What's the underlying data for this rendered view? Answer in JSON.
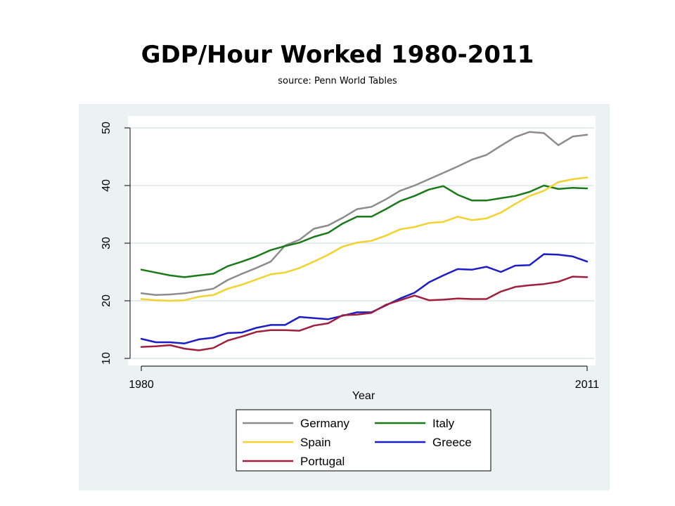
{
  "page": {
    "title": "GDP/Hour Worked 1980-2011",
    "subtitle": "source: Penn World Tables"
  },
  "chart_data": {
    "type": "line",
    "xlabel": "Year",
    "ylabel": "",
    "xlim": [
      1980,
      2011
    ],
    "ylim": [
      10,
      50
    ],
    "x_ticks": [
      1980,
      2011
    ],
    "y_ticks": [
      10,
      20,
      30,
      40,
      50
    ],
    "grid": true,
    "legend_position": "bottom",
    "colors": {
      "background": "#eaf2f3",
      "plot_area": "#ffffff",
      "grid": "#e3ecee"
    },
    "x": [
      1980,
      1981,
      1982,
      1983,
      1984,
      1985,
      1986,
      1987,
      1988,
      1989,
      1990,
      1991,
      1992,
      1993,
      1994,
      1995,
      1996,
      1997,
      1998,
      1999,
      2000,
      2001,
      2002,
      2003,
      2004,
      2005,
      2006,
      2007,
      2008,
      2009,
      2010,
      2011
    ],
    "series": [
      {
        "name": "Germany",
        "color": "#8c8c8c",
        "values": [
          21.3,
          21.0,
          21.1,
          21.3,
          21.7,
          22.1,
          23.6,
          24.7,
          25.7,
          26.8,
          29.6,
          30.6,
          32.5,
          33.1,
          34.4,
          35.9,
          36.3,
          37.6,
          39.1,
          40.0,
          41.1,
          42.2,
          43.3,
          44.5,
          45.3,
          46.9,
          48.4,
          49.3,
          49.1,
          47.0,
          48.5,
          48.8
        ]
      },
      {
        "name": "Italy",
        "color": "#1a7a1a",
        "values": [
          25.4,
          24.9,
          24.4,
          24.1,
          24.4,
          24.7,
          26.0,
          26.8,
          27.7,
          28.8,
          29.5,
          30.1,
          31.1,
          31.8,
          33.4,
          34.6,
          34.6,
          35.9,
          37.3,
          38.2,
          39.3,
          39.9,
          38.4,
          37.4,
          37.4,
          37.8,
          38.2,
          38.9,
          40.0,
          39.4,
          39.6,
          39.5
        ]
      },
      {
        "name": "Spain",
        "color": "#f2d22e",
        "values": [
          20.3,
          20.1,
          20.0,
          20.1,
          20.7,
          21.0,
          22.1,
          22.8,
          23.7,
          24.6,
          24.9,
          25.7,
          26.8,
          28.0,
          29.4,
          30.1,
          30.4,
          31.3,
          32.4,
          32.8,
          33.5,
          33.7,
          34.6,
          34.0,
          34.3,
          35.3,
          36.8,
          38.2,
          39.1,
          40.6,
          41.1,
          41.4
        ]
      },
      {
        "name": "Greece",
        "color": "#1c1cc8",
        "values": [
          13.4,
          12.8,
          12.8,
          12.6,
          13.3,
          13.6,
          14.4,
          14.5,
          15.3,
          15.8,
          15.8,
          17.2,
          17.0,
          16.8,
          17.4,
          18.0,
          18.0,
          19.2,
          20.4,
          21.4,
          23.2,
          24.4,
          25.5,
          25.4,
          25.9,
          25.0,
          26.1,
          26.2,
          28.1,
          28.0,
          27.7,
          26.8
        ]
      },
      {
        "name": "Portugal",
        "color": "#a0203c",
        "values": [
          12.0,
          12.1,
          12.3,
          11.7,
          11.4,
          11.8,
          13.1,
          13.8,
          14.6,
          14.9,
          14.9,
          14.8,
          15.7,
          16.1,
          17.5,
          17.6,
          17.9,
          19.3,
          20.1,
          20.9,
          20.1,
          20.2,
          20.4,
          20.3,
          20.3,
          21.6,
          22.4,
          22.7,
          22.9,
          23.3,
          24.2,
          24.1
        ]
      }
    ]
  }
}
